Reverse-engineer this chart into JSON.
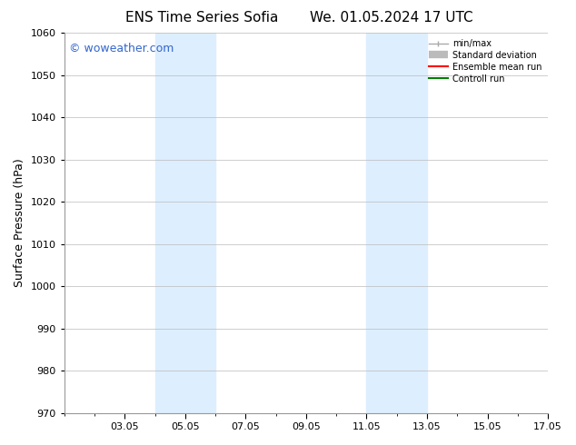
{
  "title_left": "ENS Time Series Sofia",
  "title_right": "We. 01.05.2024 17 UTC",
  "ylabel": "Surface Pressure (hPa)",
  "ylim": [
    970,
    1060
  ],
  "yticks": [
    970,
    980,
    990,
    1000,
    1010,
    1020,
    1030,
    1040,
    1050,
    1060
  ],
  "xlim": [
    1.0,
    17.0
  ],
  "xtick_labels": [
    "03.05",
    "05.05",
    "07.05",
    "09.05",
    "11.05",
    "13.05",
    "15.05",
    "17.05"
  ],
  "xtick_positions": [
    3,
    5,
    7,
    9,
    11,
    13,
    15,
    17
  ],
  "xminor_positions": [
    1,
    2,
    3,
    4,
    5,
    6,
    7,
    8,
    9,
    10,
    11,
    12,
    13,
    14,
    15,
    16,
    17
  ],
  "shaded_bands": [
    {
      "x_start": 4.0,
      "x_end": 6.0
    },
    {
      "x_start": 11.0,
      "x_end": 13.0
    }
  ],
  "shaded_color": "#ddeeff",
  "background_color": "#ffffff",
  "grid_color": "#bbbbbb",
  "watermark_text": "© woweather.com",
  "watermark_color": "#3366cc",
  "legend_labels": [
    "min/max",
    "Standard deviation",
    "Ensemble mean run",
    "Controll run"
  ],
  "legend_colors": [
    "#aaaaaa",
    "#bbbbbb",
    "#ff0000",
    "#008000"
  ],
  "title_fontsize": 11,
  "axis_label_fontsize": 9,
  "tick_fontsize": 8,
  "watermark_fontsize": 9
}
